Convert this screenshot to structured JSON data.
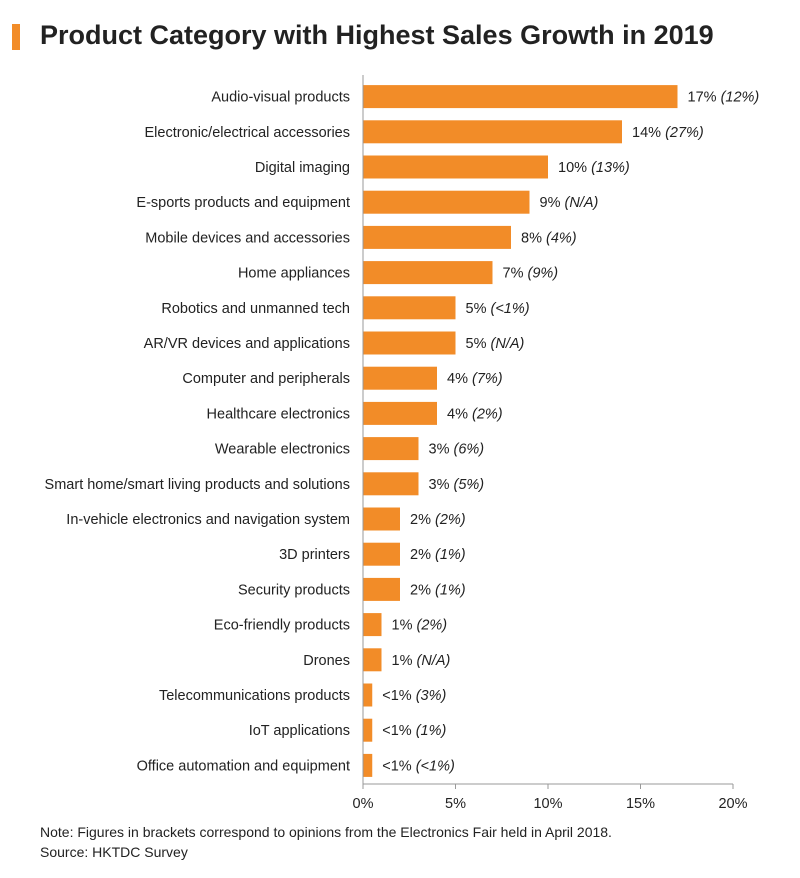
{
  "title": "Product Category with Highest Sales Growth in 2019",
  "note": "Note: Figures in brackets correspond to opinions from the Electronics Fair held in April 2018.",
  "source": "Source: HKTDC Survey",
  "colors": {
    "bar": "#f28c28",
    "accent": "#f28c28",
    "axis": "#999999",
    "text": "#222222"
  },
  "chart_data": {
    "type": "bar",
    "orientation": "horizontal",
    "title": "Product Category with Highest Sales Growth in 2019",
    "xlim": [
      0,
      20
    ],
    "x_ticks": [
      "0%",
      "5%",
      "10%",
      "15%",
      "20%"
    ],
    "grid": false,
    "categories": [
      "Audio-visual products",
      "Electronic/electrical accessories",
      "Digital imaging",
      "E-sports products and equipment",
      "Mobile devices and accessories",
      "Home appliances",
      "Robotics and unmanned tech",
      "AR/VR devices and applications",
      "Computer and peripherals",
      "Healthcare electronics",
      "Wearable electronics",
      "Smart home/smart living products and solutions",
      "In-vehicle electronics and navigation system",
      "3D printers",
      "Security products",
      "Eco-friendly products",
      "Drones",
      "Telecommunications products",
      "IoT applications",
      "Office automation and equipment"
    ],
    "values": [
      17,
      14,
      10,
      9,
      8,
      7,
      5,
      5,
      4,
      4,
      3,
      3,
      2,
      2,
      2,
      1,
      1,
      0.5,
      0.5,
      0.5
    ],
    "value_labels": [
      "17%",
      "14%",
      "10%",
      "9%",
      "8%",
      "7%",
      "5%",
      "5%",
      "4%",
      "4%",
      "3%",
      "3%",
      "2%",
      "2%",
      "2%",
      "1%",
      "1%",
      "<1%",
      "<1%",
      "<1%"
    ],
    "prior_labels": [
      "(12%)",
      "(27%)",
      "(13%)",
      "(N/A)",
      "(4%)",
      "(9%)",
      "(<1%)",
      "(N/A)",
      "(7%)",
      "(2%)",
      "(6%)",
      "(5%)",
      "(2%)",
      "(1%)",
      "(1%)",
      "(2%)",
      "(N/A)",
      "(3%)",
      "(1%)",
      "(<1%)"
    ]
  }
}
